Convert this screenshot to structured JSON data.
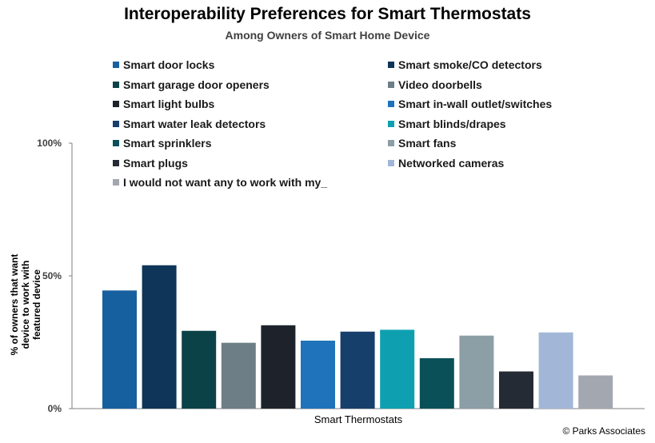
{
  "chart_data": {
    "type": "bar",
    "title": "Interoperability Preferences for Smart Thermostats",
    "subtitle": "Among Owners of Smart Home Device",
    "ylabel": "% of owners that want device to work with featured device",
    "xlabel": "",
    "categories": [
      "Smart Thermostats"
    ],
    "ylim": [
      0,
      100
    ],
    "yticks": [
      "0%",
      "50%",
      "100%"
    ],
    "legend_position": "top",
    "grid": false,
    "series": [
      {
        "name": "Smart door locks",
        "values": [
          44.5
        ],
        "color": "#17609f"
      },
      {
        "name": "Smart smoke/CO detectors",
        "values": [
          54
        ],
        "color": "#0f3558"
      },
      {
        "name": "Smart garage door openers",
        "values": [
          29.3
        ],
        "color": "#0b4248"
      },
      {
        "name": "Video doorbells",
        "values": [
          24.8
        ],
        "color": "#6e7e86"
      },
      {
        "name": "Smart light bulbs",
        "values": [
          31.4
        ],
        "color": "#1e232b"
      },
      {
        "name": "Smart in-wall outlet/switches",
        "values": [
          25.6
        ],
        "color": "#1f73bb"
      },
      {
        "name": "Smart water leak detectors",
        "values": [
          29
        ],
        "color": "#163f6c"
      },
      {
        "name": "Smart blinds/drapes",
        "values": [
          29.7
        ],
        "color": "#0ea0b0"
      },
      {
        "name": "Smart sprinklers",
        "values": [
          19
        ],
        "color": "#0a5059"
      },
      {
        "name": "Smart fans",
        "values": [
          27.5
        ],
        "color": "#8c9ea6"
      },
      {
        "name": "Smart plugs",
        "values": [
          14
        ],
        "color": "#252b34"
      },
      {
        "name": "Networked cameras",
        "values": [
          28.7
        ],
        "color": "#a2b6d8"
      },
      {
        "name": "I would not want any to work with my_",
        "values": [
          12.5
        ],
        "color": "#a2a7b0"
      }
    ]
  },
  "credit": "© Parks Associates"
}
